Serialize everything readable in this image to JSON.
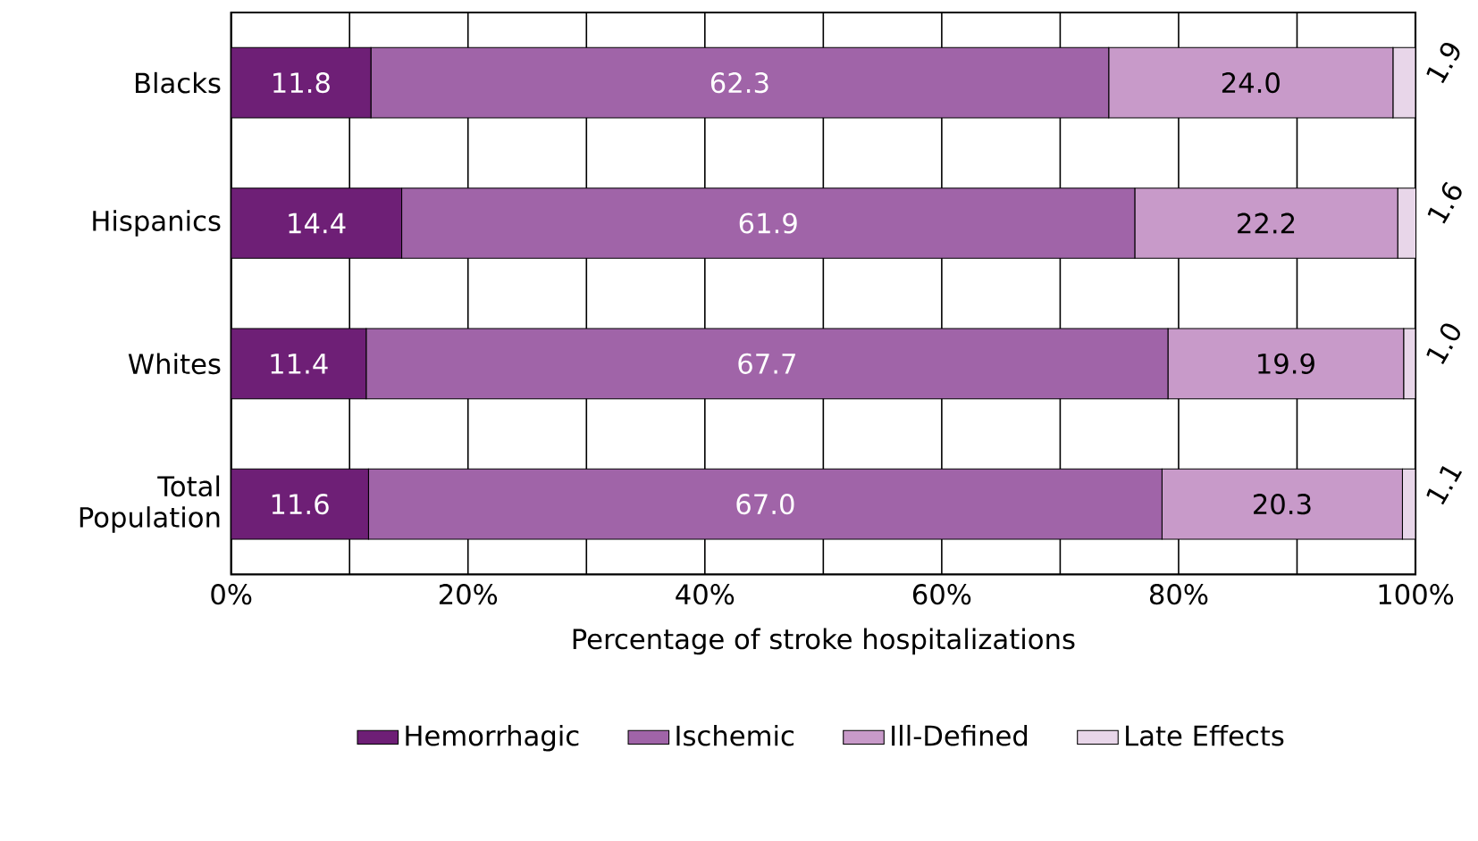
{
  "chart_data": {
    "type": "bar",
    "orientation": "horizontal",
    "stacked": true,
    "xlabel": "Percentage of stroke hospitalizations",
    "categories": [
      "Blacks",
      "Hispanics",
      "Whites",
      "Total Population"
    ],
    "series": [
      {
        "name": "Hemorrhagic",
        "color": "#6e1f76",
        "values": [
          11.8,
          14.4,
          11.4,
          11.6
        ],
        "value_labels": [
          "11.8",
          "14.4",
          "11.4",
          "11.6"
        ]
      },
      {
        "name": "Ischemic",
        "color": "#a064a8",
        "values": [
          62.3,
          61.9,
          67.7,
          67.0
        ],
        "value_labels": [
          "62.3",
          "61.9",
          "67.7",
          "67.0"
        ]
      },
      {
        "name": "Ill-Defined",
        "color": "#c89ac9",
        "values": [
          24.0,
          22.2,
          19.9,
          20.3
        ],
        "value_labels": [
          "24.0",
          "22.2",
          "19.9",
          "20.3"
        ]
      },
      {
        "name": "Late Effects",
        "color": "#e8d6e9",
        "values": [
          1.9,
          1.6,
          1.0,
          1.1
        ],
        "value_labels": [
          "1.9",
          "1.6",
          "1.0",
          "1.1"
        ]
      }
    ],
    "xlim": [
      0,
      100
    ],
    "xticks": [
      {
        "value": 0,
        "label": "0%"
      },
      {
        "value": 10,
        "label": null
      },
      {
        "value": 20,
        "label": "20%"
      },
      {
        "value": 30,
        "label": null
      },
      {
        "value": 40,
        "label": "40%"
      },
      {
        "value": 50,
        "label": null
      },
      {
        "value": 60,
        "label": "60%"
      },
      {
        "value": 70,
        "label": null
      },
      {
        "value": 80,
        "label": "80%"
      },
      {
        "value": 90,
        "label": null
      },
      {
        "value": 100,
        "label": "100%"
      }
    ],
    "grid": "x",
    "legend": "bottom"
  }
}
